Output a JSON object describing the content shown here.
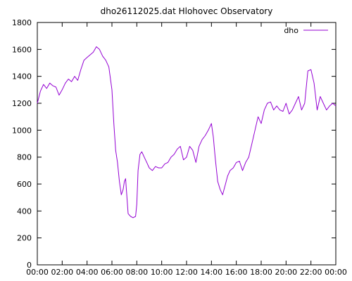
{
  "chart_data": {
    "type": "line",
    "title": "dho26112025.dat Hlohovec Observatory",
    "xlabel": "",
    "ylabel": "",
    "xlim": [
      0,
      24
    ],
    "ylim": [
      0,
      1800
    ],
    "grid": false,
    "legend_position": "top-right",
    "x_ticks": [
      "00:00",
      "02:00",
      "04:00",
      "06:00",
      "08:00",
      "10:00",
      "12:00",
      "14:00",
      "16:00",
      "18:00",
      "20:00",
      "22:00",
      "00:00"
    ],
    "y_ticks": [
      "0",
      "200",
      "400",
      "600",
      "800",
      "1000",
      "1200",
      "1400",
      "1600",
      "1800"
    ],
    "series": [
      {
        "name": "dho",
        "color": "#9400d3",
        "x": [
          0,
          0.25,
          0.5,
          0.75,
          1,
          1.25,
          1.5,
          1.75,
          2,
          2.25,
          2.5,
          2.75,
          3,
          3.25,
          3.5,
          3.75,
          4,
          4.25,
          4.5,
          4.75,
          5,
          5.25,
          5.5,
          5.75,
          6,
          6.15,
          6.3,
          6.45,
          6.6,
          6.75,
          6.9,
          7,
          7.1,
          7.3,
          7.5,
          7.7,
          7.9,
          8,
          8.1,
          8.25,
          8.4,
          8.6,
          8.8,
          9,
          9.25,
          9.5,
          9.75,
          10,
          10.25,
          10.5,
          10.75,
          11,
          11.25,
          11.5,
          11.75,
          12,
          12.25,
          12.5,
          12.75,
          13,
          13.25,
          13.5,
          13.75,
          14,
          14.15,
          14.3,
          14.5,
          14.7,
          14.9,
          15.1,
          15.3,
          15.5,
          15.75,
          16,
          16.25,
          16.5,
          16.75,
          17,
          17.25,
          17.5,
          17.75,
          18,
          18.25,
          18.5,
          18.75,
          19,
          19.25,
          19.5,
          19.75,
          20,
          20.25,
          20.5,
          20.75,
          21,
          21.25,
          21.5,
          21.75,
          22,
          22.25,
          22.5,
          22.75,
          23,
          23.25,
          23.5,
          23.75,
          24
        ],
        "y": [
          1200,
          1290,
          1340,
          1310,
          1350,
          1330,
          1320,
          1260,
          1300,
          1350,
          1380,
          1360,
          1400,
          1370,
          1450,
          1520,
          1540,
          1560,
          1580,
          1620,
          1600,
          1550,
          1520,
          1470,
          1300,
          1050,
          850,
          760,
          620,
          520,
          560,
          620,
          640,
          380,
          360,
          350,
          360,
          450,
          700,
          820,
          840,
          800,
          760,
          720,
          700,
          730,
          720,
          720,
          750,
          760,
          800,
          820,
          860,
          880,
          780,
          800,
          880,
          850,
          760,
          880,
          930,
          960,
          1000,
          1050,
          950,
          800,
          620,
          560,
          520,
          590,
          660,
          700,
          720,
          760,
          770,
          700,
          760,
          800,
          900,
          1000,
          1100,
          1050,
          1150,
          1200,
          1210,
          1150,
          1180,
          1150,
          1140,
          1200,
          1120,
          1150,
          1200,
          1250,
          1150,
          1200,
          1440,
          1450,
          1350,
          1150,
          1250,
          1200,
          1150,
          1180,
          1200,
          1180
        ]
      }
    ]
  }
}
